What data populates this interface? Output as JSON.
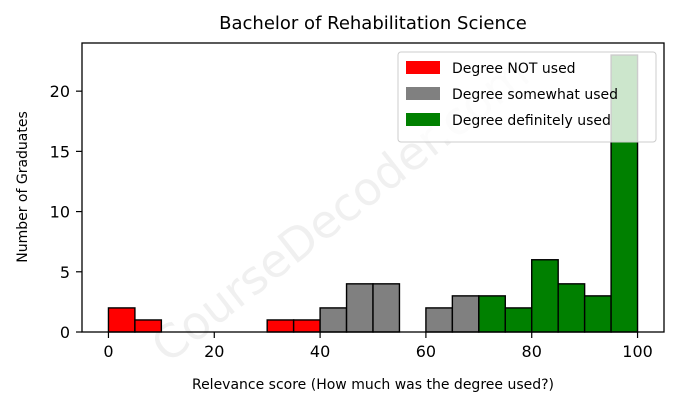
{
  "chart_data": {
    "type": "bar",
    "title": "Bachelor of Rehabilitation Science",
    "xlabel": "Relevance score (How much was the degree used?)",
    "ylabel": "Number of Graduates",
    "xlim": [
      -5,
      105
    ],
    "ylim": [
      0,
      24
    ],
    "xticks": [
      0,
      20,
      40,
      60,
      80,
      100
    ],
    "yticks": [
      0,
      5,
      10,
      15,
      20
    ],
    "bin_width": 5,
    "legend_placement": "top-right",
    "grid": false,
    "series": [
      {
        "name": "Degree NOT used",
        "color": "#ff0000",
        "bins": [
          {
            "x0": 0,
            "x1": 5,
            "count": 2
          },
          {
            "x0": 5,
            "x1": 10,
            "count": 1
          },
          {
            "x0": 30,
            "x1": 35,
            "count": 1
          },
          {
            "x0": 35,
            "x1": 40,
            "count": 1
          }
        ]
      },
      {
        "name": "Degree somewhat used",
        "color": "#808080",
        "bins": [
          {
            "x0": 40,
            "x1": 45,
            "count": 2
          },
          {
            "x0": 45,
            "x1": 50,
            "count": 4
          },
          {
            "x0": 50,
            "x1": 55,
            "count": 4
          },
          {
            "x0": 60,
            "x1": 65,
            "count": 2
          },
          {
            "x0": 65,
            "x1": 70,
            "count": 3
          }
        ]
      },
      {
        "name": "Degree definitely used",
        "color": "#008000",
        "bins": [
          {
            "x0": 70,
            "x1": 75,
            "count": 3
          },
          {
            "x0": 75,
            "x1": 80,
            "count": 2
          },
          {
            "x0": 80,
            "x1": 85,
            "count": 6
          },
          {
            "x0": 85,
            "x1": 90,
            "count": 4
          },
          {
            "x0": 90,
            "x1": 95,
            "count": 3
          },
          {
            "x0": 95,
            "x1": 100,
            "count": 23
          }
        ]
      }
    ]
  },
  "watermark": "CourseDecoder.com"
}
